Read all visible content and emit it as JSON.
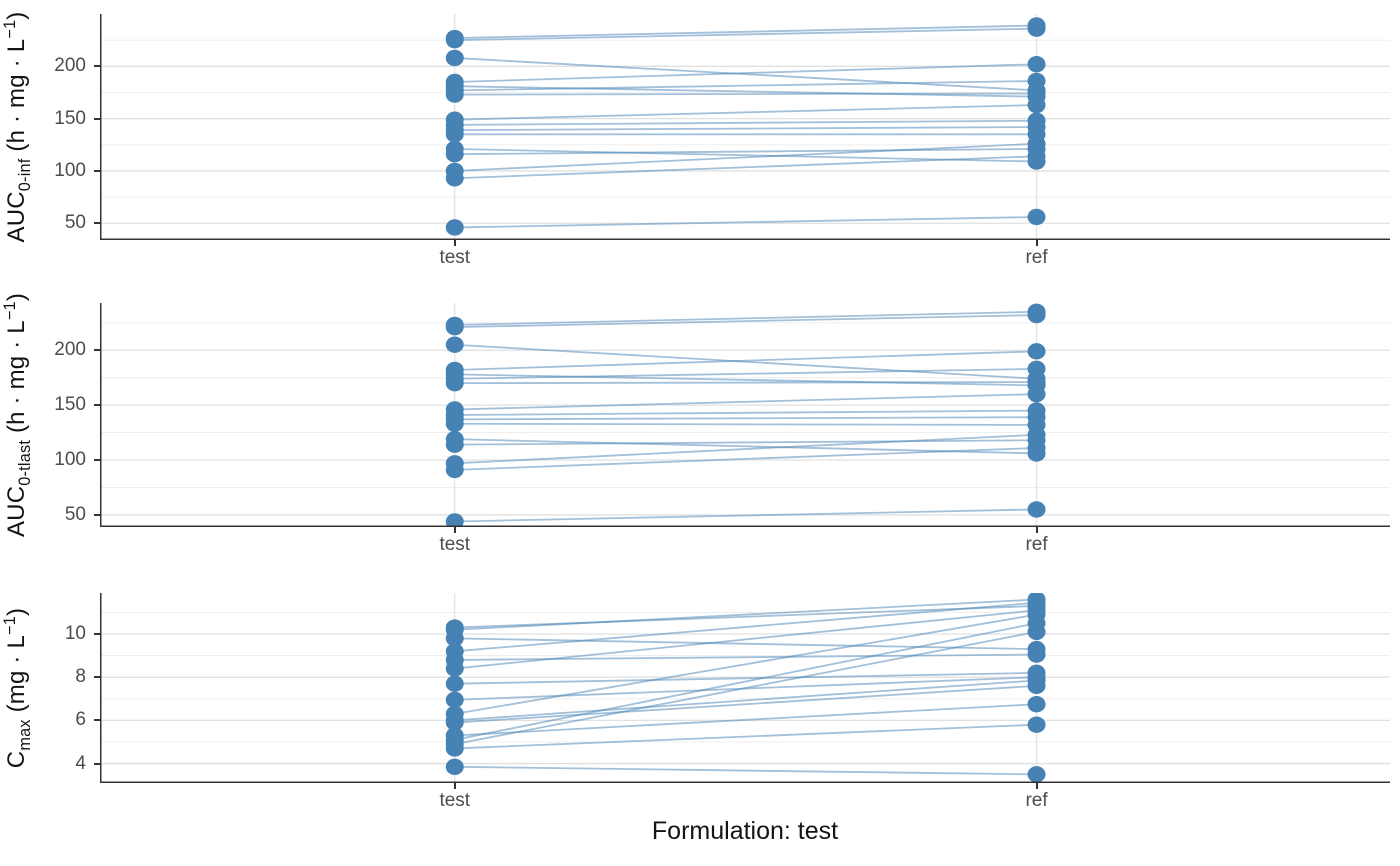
{
  "xlabel": "Formulation: test",
  "colors": {
    "point": "#4682B4",
    "line": "rgba(70,130,180,0.5)",
    "axis": "#333333",
    "grid_major": "#e0e0e0",
    "grid_minor": "#ececec",
    "grid_vertical": "#e3e3e3",
    "tick_text": "#4d4d4d",
    "title_text": "#141414"
  },
  "chart_data": [
    {
      "type": "line",
      "panel": "AUC0-inf",
      "ylabel": {
        "prefix": "AUC",
        "sub": "0-inf",
        "units_pre": "  (h · mg · L",
        "sup": "−1",
        "units_post": ")"
      },
      "categories": [
        "test",
        "ref"
      ],
      "yticks": [
        50,
        100,
        150,
        200
      ],
      "yticks_minor": [
        75,
        125,
        175,
        225
      ],
      "ylim": [
        34,
        250
      ],
      "grid": true,
      "pairs": [
        [
          227,
          239
        ],
        [
          225,
          236
        ],
        [
          208,
          177
        ],
        [
          185,
          202
        ],
        [
          181,
          171
        ],
        [
          177,
          186
        ],
        [
          173,
          174
        ],
        [
          149,
          163
        ],
        [
          144,
          148
        ],
        [
          139,
          142
        ],
        [
          135,
          135
        ],
        [
          121,
          109
        ],
        [
          116,
          121
        ],
        [
          100,
          126
        ],
        [
          93,
          114
        ],
        [
          46,
          56
        ]
      ]
    },
    {
      "type": "line",
      "panel": "AUC0-tlast",
      "ylabel": {
        "prefix": "AUC",
        "sub": "0-tlast",
        "units_pre": "  (h · mg · L",
        "sup": "−1",
        "units_post": ")"
      },
      "categories": [
        "test",
        "ref"
      ],
      "yticks": [
        50,
        100,
        150,
        200
      ],
      "yticks_minor": [
        75,
        125,
        175,
        225
      ],
      "ylim": [
        39,
        243
      ],
      "grid": true,
      "pairs": [
        [
          223,
          235
        ],
        [
          221,
          232
        ],
        [
          205,
          174
        ],
        [
          182,
          199
        ],
        [
          178,
          168
        ],
        [
          174,
          183
        ],
        [
          170,
          171
        ],
        [
          146,
          160
        ],
        [
          141,
          145
        ],
        [
          137,
          139
        ],
        [
          133,
          132
        ],
        [
          119,
          106
        ],
        [
          114,
          118
        ],
        [
          97,
          123
        ],
        [
          91,
          111
        ],
        [
          44,
          55
        ]
      ]
    },
    {
      "type": "line",
      "panel": "Cmax",
      "ylabel": {
        "prefix": "C",
        "sub": "max",
        "units_pre": "  (mg · L",
        "sup": "−1",
        "units_post": ")"
      },
      "categories": [
        "test",
        "ref"
      ],
      "yticks": [
        4,
        6,
        8,
        10
      ],
      "yticks_minor": [
        5,
        7,
        9,
        11
      ],
      "ylim": [
        3.1,
        11.9
      ],
      "grid": true,
      "pairs": [
        [
          10.2,
          11.6
        ],
        [
          9.8,
          9.3
        ],
        [
          10.3,
          11.3
        ],
        [
          9.2,
          11.45
        ],
        [
          8.8,
          9.05
        ],
        [
          8.4,
          11.1
        ],
        [
          7.7,
          8.2
        ],
        [
          6.95,
          8.0
        ],
        [
          6.3,
          10.9
        ],
        [
          6.0,
          7.85
        ],
        [
          5.9,
          7.6
        ],
        [
          5.3,
          6.75
        ],
        [
          5.1,
          10.5
        ],
        [
          4.9,
          10.1
        ],
        [
          4.7,
          5.8
        ],
        [
          3.85,
          3.5
        ]
      ]
    }
  ]
}
